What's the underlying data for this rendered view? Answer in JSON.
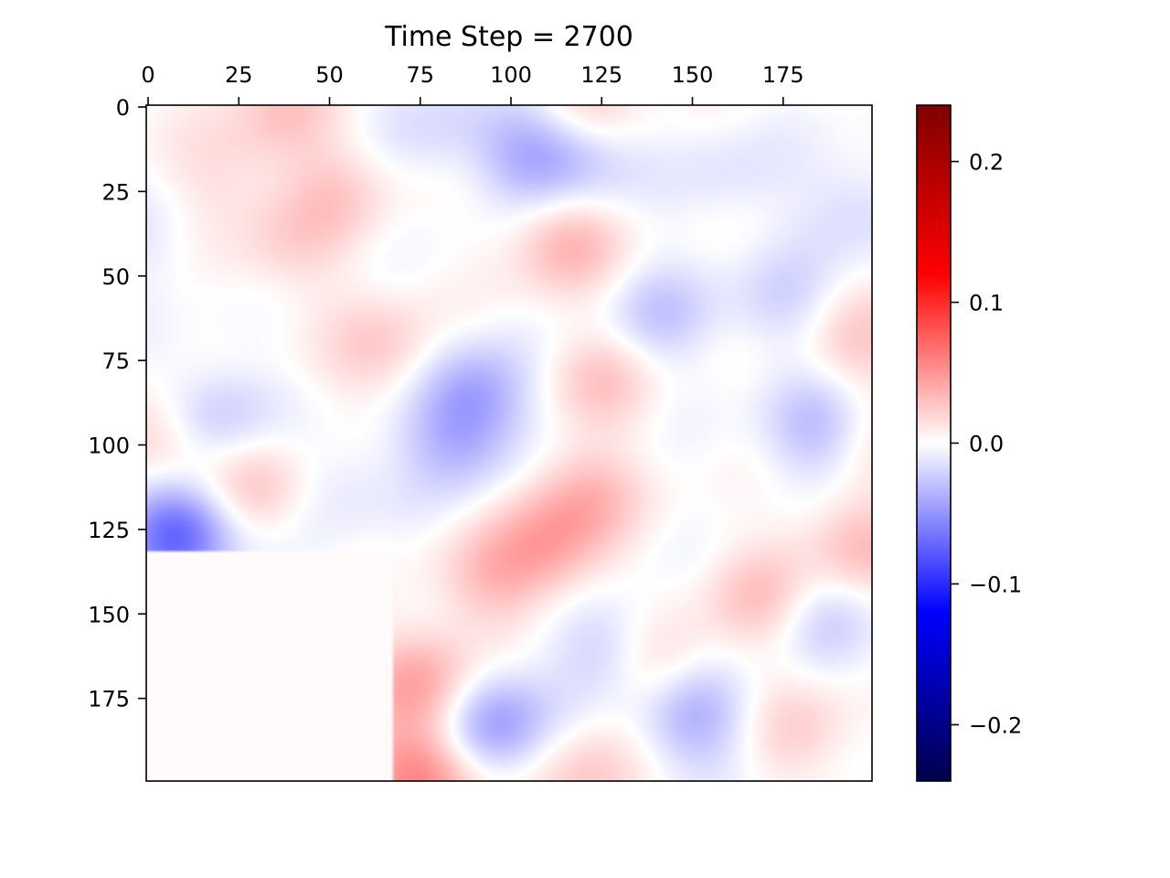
{
  "chart_data": {
    "type": "heatmap",
    "title": "Time Step = 2700",
    "xlabel": "",
    "ylabel": "",
    "x_ticks": [
      0,
      25,
      50,
      75,
      100,
      125,
      150,
      175
    ],
    "y_ticks": [
      0,
      25,
      50,
      75,
      100,
      125,
      150,
      175
    ],
    "xlim": [
      0,
      200
    ],
    "ylim": [
      200,
      0
    ],
    "x_axis_position": "top",
    "grid": false,
    "colormap": {
      "name": "seismic",
      "stops": [
        "#00004c",
        "#0000ff",
        "#ffffff",
        "#ff0000",
        "#800000"
      ]
    },
    "colorbar": {
      "range": [
        -0.24,
        0.24
      ],
      "ticks": [
        0.2,
        0.1,
        0.0,
        -0.1,
        -0.2
      ],
      "tick_labels": [
        "0.2",
        "0.1",
        "0.0",
        "−0.1",
        "−0.2"
      ]
    },
    "masked_region": {
      "x_range": [
        0,
        68
      ],
      "y_range": [
        132,
        200
      ],
      "value": 0.002
    },
    "features": [
      {
        "x": 8,
        "y": 126,
        "value": -0.075
      },
      {
        "x": 17,
        "y": 92,
        "value": -0.03
      },
      {
        "x": 2,
        "y": 100,
        "value": 0.03
      },
      {
        "x": 120,
        "y": 0,
        "value": 0.03
      },
      {
        "x": 37,
        "y": 2,
        "value": 0.025
      },
      {
        "x": 105,
        "y": 14,
        "value": -0.035
      },
      {
        "x": 120,
        "y": 14,
        "value": -0.03
      },
      {
        "x": 20,
        "y": 20,
        "value": 0.015
      },
      {
        "x": 52,
        "y": 26,
        "value": 0.02
      },
      {
        "x": 115,
        "y": 40,
        "value": 0.035
      },
      {
        "x": 38,
        "y": 42,
        "value": 0.018
      },
      {
        "x": 65,
        "y": 72,
        "value": 0.025
      },
      {
        "x": 90,
        "y": 85,
        "value": -0.04
      },
      {
        "x": 85,
        "y": 100,
        "value": -0.03
      },
      {
        "x": 125,
        "y": 80,
        "value": 0.025
      },
      {
        "x": 140,
        "y": 62,
        "value": -0.025
      },
      {
        "x": 175,
        "y": 58,
        "value": -0.02
      },
      {
        "x": 195,
        "y": 70,
        "value": 0.025
      },
      {
        "x": 186,
        "y": 96,
        "value": -0.04
      },
      {
        "x": 195,
        "y": 100,
        "value": 0.02
      },
      {
        "x": 120,
        "y": 115,
        "value": 0.03
      },
      {
        "x": 30,
        "y": 112,
        "value": 0.03
      },
      {
        "x": 50,
        "y": 112,
        "value": -0.015
      },
      {
        "x": 110,
        "y": 130,
        "value": 0.035
      },
      {
        "x": 95,
        "y": 140,
        "value": 0.025
      },
      {
        "x": 75,
        "y": 170,
        "value": 0.045
      },
      {
        "x": 140,
        "y": 165,
        "value": 0.03
      },
      {
        "x": 170,
        "y": 145,
        "value": 0.03
      },
      {
        "x": 195,
        "y": 130,
        "value": 0.03
      },
      {
        "x": 185,
        "y": 150,
        "value": -0.025
      },
      {
        "x": 95,
        "y": 182,
        "value": -0.05
      },
      {
        "x": 150,
        "y": 180,
        "value": -0.04
      },
      {
        "x": 128,
        "y": 160,
        "value": -0.03
      },
      {
        "x": 75,
        "y": 198,
        "value": 0.06
      },
      {
        "x": 120,
        "y": 198,
        "value": 0.025
      },
      {
        "x": 180,
        "y": 185,
        "value": 0.02
      },
      {
        "x": 160,
        "y": 20,
        "value": -0.012
      },
      {
        "x": 195,
        "y": 30,
        "value": -0.018
      },
      {
        "x": 0,
        "y": 40,
        "value": -0.01
      },
      {
        "x": 80,
        "y": 5,
        "value": -0.015
      }
    ]
  }
}
